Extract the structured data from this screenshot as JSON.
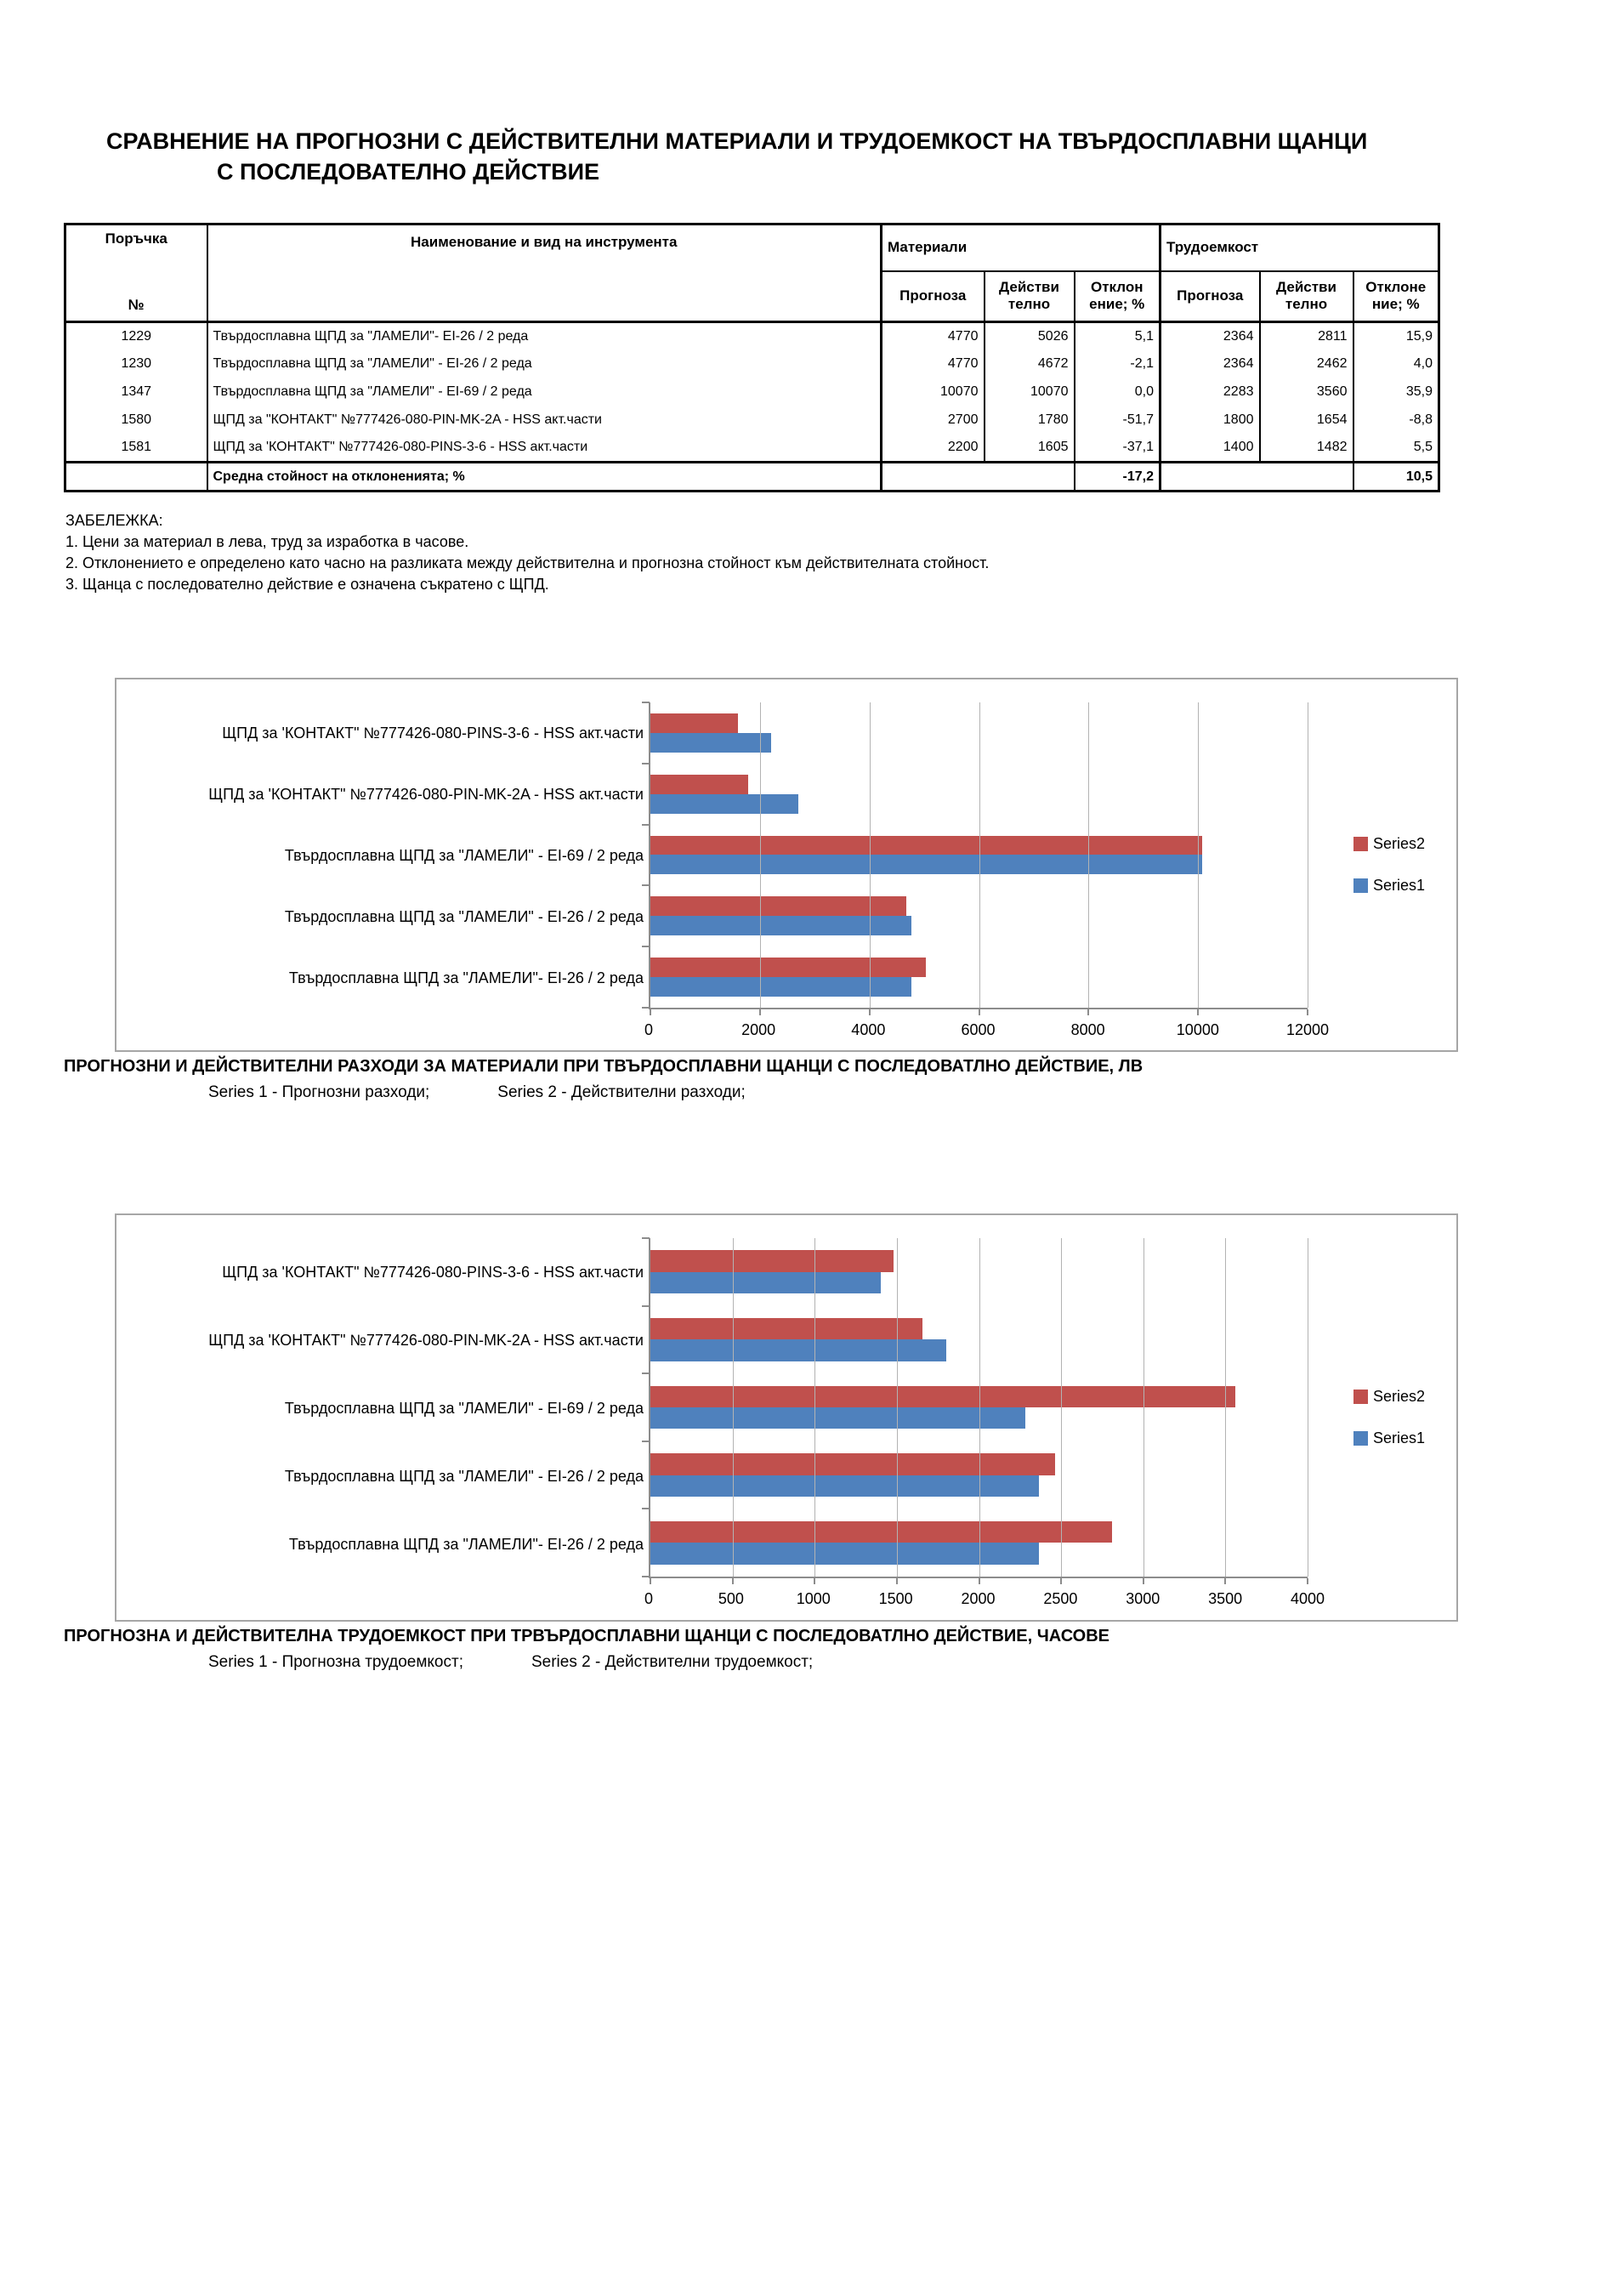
{
  "page": {
    "title_line1": "СРАВНЕНИЕ НА ПРОГНОЗНИ С ДЕЙСТВИТЕЛНИ МАТЕРИАЛИ И ТРУДОЕМКОСТ НА ТВЪРДОСПЛАВНИ ЩАНЦИ",
    "title_line2": "С ПОСЛЕДОВАТЕЛНО ДЕЙСТВИЕ"
  },
  "table": {
    "header": {
      "order_top": "Поръчка",
      "order_no": "№",
      "name": "Наименование и вид на инструмента",
      "materials": "Материали",
      "labor": "Трудоемкост",
      "forecast": "Прогноза",
      "actual": "Действи\nтелно",
      "deviation_mat": "Отклон\nение; %",
      "deviation_lab": "Отклоне\nние; %"
    },
    "rows": [
      {
        "order": "1229",
        "name": "Твърдосплавна ЩПД за \"ЛАМЕЛИ\"- EI-26 / 2 реда",
        "mat_forecast": "4770",
        "mat_actual": "5026",
        "mat_dev": "5,1",
        "lab_forecast": "2364",
        "lab_actual": "2811",
        "lab_dev": "15,9"
      },
      {
        "order": "1230",
        "name": "Твърдосплавна ЩПД за \"ЛАМЕЛИ\" - EI-26 / 2 реда",
        "mat_forecast": "4770",
        "mat_actual": "4672",
        "mat_dev": "-2,1",
        "lab_forecast": "2364",
        "lab_actual": "2462",
        "lab_dev": "4,0"
      },
      {
        "order": "1347",
        "name": "Твърдосплавна ЩПД за \"ЛАМЕЛИ\" - EI-69 / 2 реда",
        "mat_forecast": "10070",
        "mat_actual": "10070",
        "mat_dev": "0,0",
        "lab_forecast": "2283",
        "lab_actual": "3560",
        "lab_dev": "35,9"
      },
      {
        "order": "1580",
        "name": "ЩПД  за \"КОНТАКТ\" №777426-080-PIN-MK-2A  - HSS акт.части",
        "mat_forecast": "2700",
        "mat_actual": "1780",
        "mat_dev": "-51,7",
        "lab_forecast": "1800",
        "lab_actual": "1654",
        "lab_dev": "-8,8"
      },
      {
        "order": "1581",
        "name": "ЩПД за 'КОНТАКТ\" №777426-080-PINS-3-6  -  HSS акт.части",
        "mat_forecast": "2200",
        "mat_actual": "1605",
        "mat_dev": "-37,1",
        "lab_forecast": "1400",
        "lab_actual": "1482",
        "lab_dev": "5,5"
      }
    ],
    "summary": {
      "label": "Средна стойност на отклоненията; %",
      "mat_dev": "-17,2",
      "lab_dev": "10,5"
    }
  },
  "notes": {
    "heading": "ЗАБЕЛЕЖКА:",
    "items": [
      "1. Цени за материал в лева, труд за изработка в часове.",
      "2. Отклонението е определено като часно на разликата между действителна и прогнозна стойност към действителната стойност.",
      "3. Щанца с последователно действие е означена  съкратено с  ЩПД."
    ]
  },
  "chart_data": [
    {
      "type": "bar",
      "orientation": "horizontal",
      "title": "ПРОГНОЗНИ И ДЕЙСТВИТЕЛНИ РАЗХОДИ ЗА МАТЕРИАЛИ ПРИ ТВЪРДОСПЛАВНИ ЩАНЦИ С ПОСЛЕДОВАТЛНО ДЕЙСТВИЕ,  ЛВ",
      "series_note_1": "Series 1  -  Прогнозни разходи;",
      "series_note_2": "Series 2  - Действителни разходи;",
      "categories": [
        "ЩПД за 'КОНТАКТ\" №777426-080-PINS-3-6   -  HSS акт.части",
        "ЩПД  за 'КОНТАКТ\" №777426-080-PIN-MK-2A  - HSS акт.части",
        "Твърдосплавна ЩПД за \"ЛАМЕЛИ\" - EI-69 / 2 реда",
        "Твърдосплавна ЩПД за \"ЛАМЕЛИ\" - EI-26 / 2 реда",
        "Твърдосплавна ЩПД за \"ЛАМЕЛИ\"- EI-26 / 2 реда"
      ],
      "series": [
        {
          "name": "Series2",
          "color": "#C0504D",
          "values": [
            1605,
            1780,
            10070,
            4672,
            5026
          ]
        },
        {
          "name": "Series1",
          "color": "#4F81BD",
          "values": [
            2200,
            2700,
            10070,
            4770,
            4770
          ]
        }
      ],
      "xlim": [
        0,
        12000
      ],
      "xticks": [
        0,
        2000,
        4000,
        6000,
        8000,
        10000,
        12000
      ],
      "legend_position": "right",
      "grid": true
    },
    {
      "type": "bar",
      "orientation": "horizontal",
      "title": "ПРОГНОЗНА И ДЕЙСТВИТЕЛНА ТРУДОЕМКОСТ ПРИ ТРВЪРДОСПЛАВНИ  ЩАНЦИ С ПОСЛЕДОВАТЛНО ДЕЙСТВИЕ,  ЧАСОВЕ",
      "series_note_1": "Series 1  -  Прогнозна трудоемкост;",
      "series_note_2": "Series 2  - Действителни трудоемкост;",
      "categories": [
        "ЩПД за 'КОНТАКТ\" №777426-080-PINS-3-6   -  HSS акт.части",
        "ЩПД  за 'КОНТАКТ\" №777426-080-PIN-MK-2A  - HSS акт.части",
        "Твърдосплавна ЩПД за \"ЛАМЕЛИ\" - EI-69 / 2 реда",
        "Твърдосплавна ЩПД за \"ЛАМЕЛИ\" - EI-26 / 2 реда",
        "Твърдосплавна ЩПД за \"ЛАМЕЛИ\"- EI-26 / 2 реда"
      ],
      "series": [
        {
          "name": "Series2",
          "color": "#C0504D",
          "values": [
            1482,
            1654,
            3560,
            2462,
            2811
          ]
        },
        {
          "name": "Series1",
          "color": "#4F81BD",
          "values": [
            1400,
            1800,
            2283,
            2364,
            2364
          ]
        }
      ],
      "xlim": [
        0,
        4000
      ],
      "xticks": [
        0,
        500,
        1000,
        1500,
        2000,
        2500,
        3000,
        3500,
        4000
      ],
      "legend_position": "right",
      "grid": true
    }
  ]
}
